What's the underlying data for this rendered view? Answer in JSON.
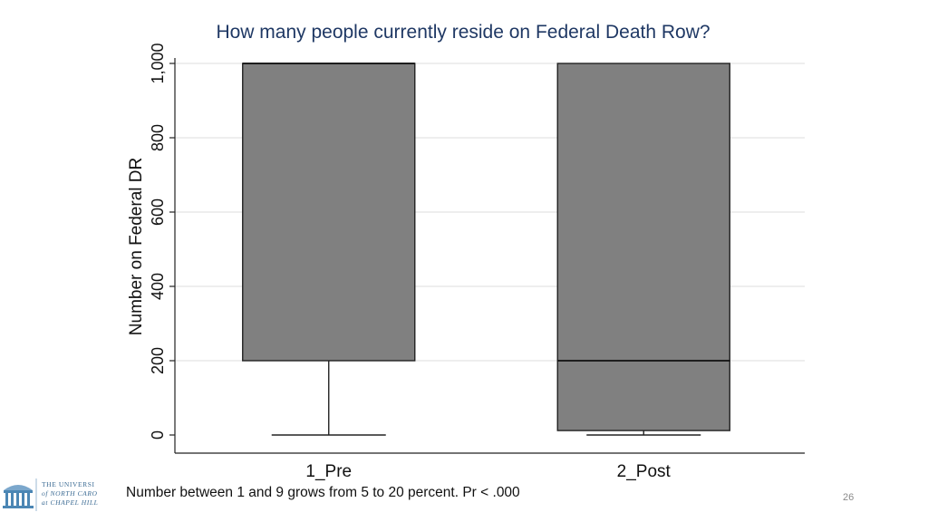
{
  "slide": {
    "footnote": "Number between 1 and 9 grows from 5 to 20 percent. Pr < .000",
    "slide_number": "26",
    "logo_lines": [
      "THE UNIVERSI",
      "of NORTH CARO",
      "at CHAPEL HILL"
    ]
  },
  "chart_data": {
    "type": "box",
    "title": "How many people currently reside on Federal Death Row?",
    "xlabel": "",
    "ylabel": "Number on Federal DR",
    "ylim": [
      0,
      1000
    ],
    "yticks": [
      0,
      200,
      400,
      600,
      800,
      1000
    ],
    "ytick_labels": [
      "0",
      "200",
      "400",
      "600",
      "800",
      "1,000"
    ],
    "grid": true,
    "colors": {
      "box_fill": "#808080",
      "title": "#1f3864",
      "grid": "#dcdcdc"
    },
    "categories": [
      "1_Pre",
      "2_Post"
    ],
    "boxes": [
      {
        "category": "1_Pre",
        "whisker_low": 0,
        "q1": 200,
        "median": 1000,
        "q3": 1000,
        "whisker_high": 1000
      },
      {
        "category": "2_Post",
        "whisker_low": 0,
        "q1": 12,
        "median": 200,
        "q3": 1000,
        "whisker_high": 1000
      }
    ]
  }
}
